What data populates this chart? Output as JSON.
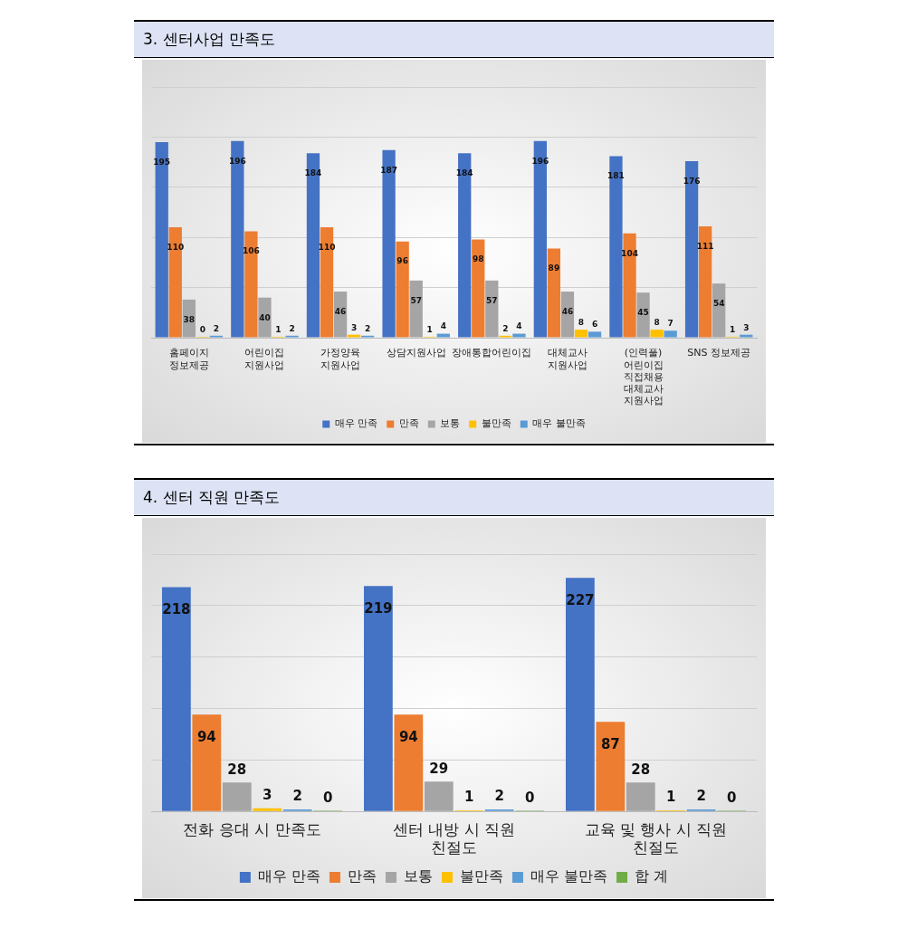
{
  "chart_data": [
    {
      "type": "bar",
      "title": "3. 센터사업 만족도",
      "categories": [
        "홈페이지 정보제공",
        "어린이집 지원사업",
        "가정양육 지원사업",
        "상담지원사업",
        "장애통합어린이집",
        "대체교사 지원사업",
        "(인력풀) 어린이집 직접채용 대체교사 지원사업",
        "SNS 정보제공"
      ],
      "series": [
        {
          "name": "매우 만족",
          "color": "#4472c4",
          "values": [
            195,
            196,
            184,
            187,
            184,
            196,
            181,
            176
          ]
        },
        {
          "name": "만족",
          "color": "#ed7d31",
          "values": [
            110,
            106,
            110,
            96,
            98,
            89,
            104,
            111
          ]
        },
        {
          "name": "보통",
          "color": "#a5a5a5",
          "values": [
            38,
            40,
            46,
            57,
            57,
            46,
            45,
            54
          ]
        },
        {
          "name": "불만족",
          "color": "#ffc000",
          "values": [
            0,
            1,
            3,
            1,
            2,
            8,
            8,
            1
          ]
        },
        {
          "name": "매우 불만족",
          "color": "#5b9bd5",
          "values": [
            2,
            2,
            2,
            4,
            4,
            6,
            7,
            3
          ]
        }
      ],
      "ylim": [
        0,
        250
      ],
      "yticks": [
        {
          "value": 0,
          "label": null
        },
        {
          "value": 50,
          "label": null
        },
        {
          "value": 100,
          "label": null
        },
        {
          "value": 150,
          "label": null
        },
        {
          "value": 200,
          "label": null
        },
        {
          "value": 250,
          "label": null
        }
      ],
      "tick_labels": "x",
      "grid": "y",
      "legend": "bottom",
      "data_labels": true
    },
    {
      "type": "bar",
      "title": "4. 센터 직원 만족도",
      "categories": [
        "전화 응대 시 만족도",
        "센터 내방 시 직원 친절도",
        "교육 및 행사 시 직원 친절도"
      ],
      "series": [
        {
          "name": "매우 만족",
          "color": "#4472c4",
          "values": [
            218,
            219,
            227
          ]
        },
        {
          "name": "만족",
          "color": "#ed7d31",
          "values": [
            94,
            94,
            87
          ]
        },
        {
          "name": "보통",
          "color": "#a5a5a5",
          "values": [
            28,
            29,
            28
          ]
        },
        {
          "name": "불만족",
          "color": "#ffc000",
          "values": [
            3,
            1,
            1
          ]
        },
        {
          "name": "매우 불만족",
          "color": "#5b9bd5",
          "values": [
            2,
            2,
            2
          ]
        },
        {
          "name": "합 계",
          "color": "#70ad47",
          "values": [
            0,
            0,
            0
          ]
        }
      ],
      "ylim": [
        0,
        250
      ],
      "yticks": [
        {
          "value": 0,
          "label": null
        },
        {
          "value": 50,
          "label": null
        },
        {
          "value": 100,
          "label": null
        },
        {
          "value": 150,
          "label": null
        },
        {
          "value": 200,
          "label": null
        },
        {
          "value": 250,
          "label": null
        }
      ],
      "tick_labels": "x",
      "grid": "y",
      "legend": "bottom",
      "data_labels": true
    }
  ]
}
